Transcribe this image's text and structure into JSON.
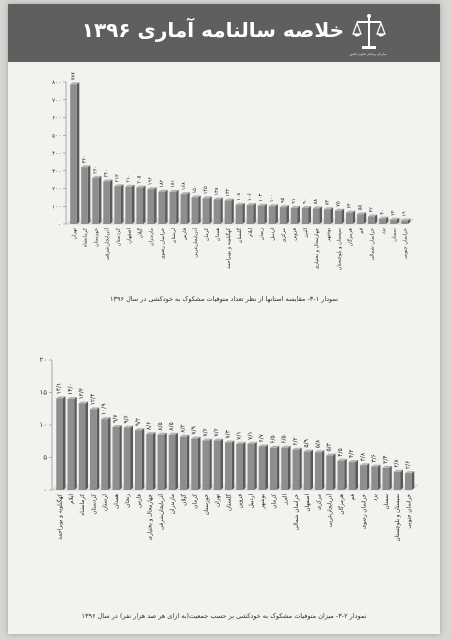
{
  "header": {
    "title": "خلاصه سالنامه آماری ۱۳۹۶",
    "emblem_icon": "scales-of-justice-icon",
    "org_name": "سازمان پزشکی قانونی کشور"
  },
  "colors": {
    "header_bg": "#5f5f60",
    "bar": "#8e8e8e",
    "bar_dark": "#5a5a5a"
  },
  "chart_data": [
    {
      "type": "bar",
      "title": "نمودار ۱-۳- مقایسه استانها از نظر تعداد متوفیات مشکوک به خودکشی در سال ۱۳۹۶",
      "ylim": [
        0,
        800
      ],
      "yticks": [
        "۰",
        "۱۰۰",
        "۲۰۰",
        "۳۰۰",
        "۴۰۰",
        "۵۰۰",
        "۶۰۰",
        "۷۰۰",
        "۸۰۰"
      ],
      "categories": [
        "تهران",
        "کرمانشاه",
        "خوزستان",
        "آذربایجان‌شرقی",
        "کردستان",
        "اصفهان",
        "گیلان",
        "مازندران",
        "خراسان رضوی",
        "لرستان",
        "فارس",
        "آذربایجان‌غربی",
        "کرمان",
        "همدان",
        "کهگیلویه و بویراحمد",
        "گلستان",
        "ایلام",
        "زنجان",
        "اردبیل",
        "مرکزی",
        "قزوین",
        "البرز",
        "چهارمحال و بختیاری",
        "بوشهر",
        "سیستان و بلوچستان",
        "هرمزگان",
        "قم",
        "خراسان شمالی",
        "یزد",
        "سمنان",
        "خراسان جنوبی"
      ],
      "values": [
        787,
        320,
        260,
        240,
        213,
        210,
        205,
        196,
        182,
        181,
        168,
        150,
        145,
        138,
        132,
        108,
        106,
        103,
        100,
        95,
        91,
        90,
        88,
        83,
        75,
        64,
        55,
        42,
        30,
        24,
        19
      ],
      "value_labels": [
        "۷۸۷",
        "۳۲۰",
        "۲۶۰",
        "۲۴۰",
        "۲۱۳",
        "۲۱۰",
        "۲۰۵",
        "۱۹۶",
        "۱۸۲",
        "۱۸۱",
        "۱۶۸",
        "۱۵۰",
        "۱۴۵",
        "۱۳۸",
        "۱۳۲",
        "۱۰۸",
        "۱۰۶",
        "۱۰۳",
        "۱۰۰",
        "۹۵",
        "۹۱",
        "۹۰",
        "۸۸",
        "۸۳",
        "۷۵",
        "۶۴",
        "۵۵",
        "۴۲",
        "۳۰",
        "۲۴",
        "۱۹"
      ]
    },
    {
      "type": "bar",
      "title": "نمودار ۲-۳- میزان متوفیات مشکوک به خودکشی بر حسب جمعیت(به ازای هر صد هزار نفر) در سال ۱۳۹۶",
      "ylim": [
        0,
        20
      ],
      "yticks": [
        "۰",
        "۵",
        "۱۰",
        "۱۵",
        "۲۰"
      ],
      "categories": [
        "کهگیلویه و بویراحمد",
        "ایلام",
        "کرمانشاه",
        "کردستان",
        "لرستان",
        "همدان",
        "زنجان",
        "فارس",
        "چهارمحال و بختیاری",
        "آذربایجان‌شرقی",
        "مازندران",
        "گیلان",
        "کرمان",
        "خوزستان",
        "تهران",
        "گلستان",
        "قزوین",
        "اردبیل",
        "بوشهر",
        "کرمان",
        "البرز",
        "خراسان شمالی",
        "اصفهان",
        "مرکزی",
        "آذربایجان‌غربی",
        "هرمزگان",
        "قم",
        "خراسان رضوی",
        "یزد",
        "سمنان",
        "سیستان و بلوچستان",
        "خراسان جنوبی"
      ],
      "values": [
        14.1,
        14.0,
        13.3,
        12.4,
        10.9,
        9.7,
        9.6,
        9.2,
        8.6,
        8.5,
        8.5,
        8.2,
        7.9,
        7.6,
        7.6,
        7.3,
        7.1,
        7.1,
        6.7,
        6.5,
        6.5,
        6.2,
        5.9,
        5.8,
        5.3,
        4.5,
        4.3,
        3.8,
        3.6,
        3.4,
        2.8,
        2.6
      ],
      "value_labels": [
        "۱۴/۱",
        "۱۴/۰",
        "۱۳/۳",
        "۱۲/۴",
        "۱۰/۹",
        "۹/۷",
        "۹/۶",
        "۹/۲",
        "۸/۶",
        "۸/۵",
        "۸/۵",
        "۸/۲",
        "۷/۹",
        "۷/۶",
        "۷/۶",
        "۷/۳",
        "۷/۱",
        "۷/۱",
        "۶/۷",
        "۶/۵",
        "۶/۵",
        "۶/۲",
        "۵/۹",
        "۵/۸",
        "۵/۳",
        "۴/۵",
        "۴/۳",
        "۳/۸",
        "۳/۶",
        "۳/۴",
        "۲/۸",
        "۲/۶"
      ]
    }
  ]
}
